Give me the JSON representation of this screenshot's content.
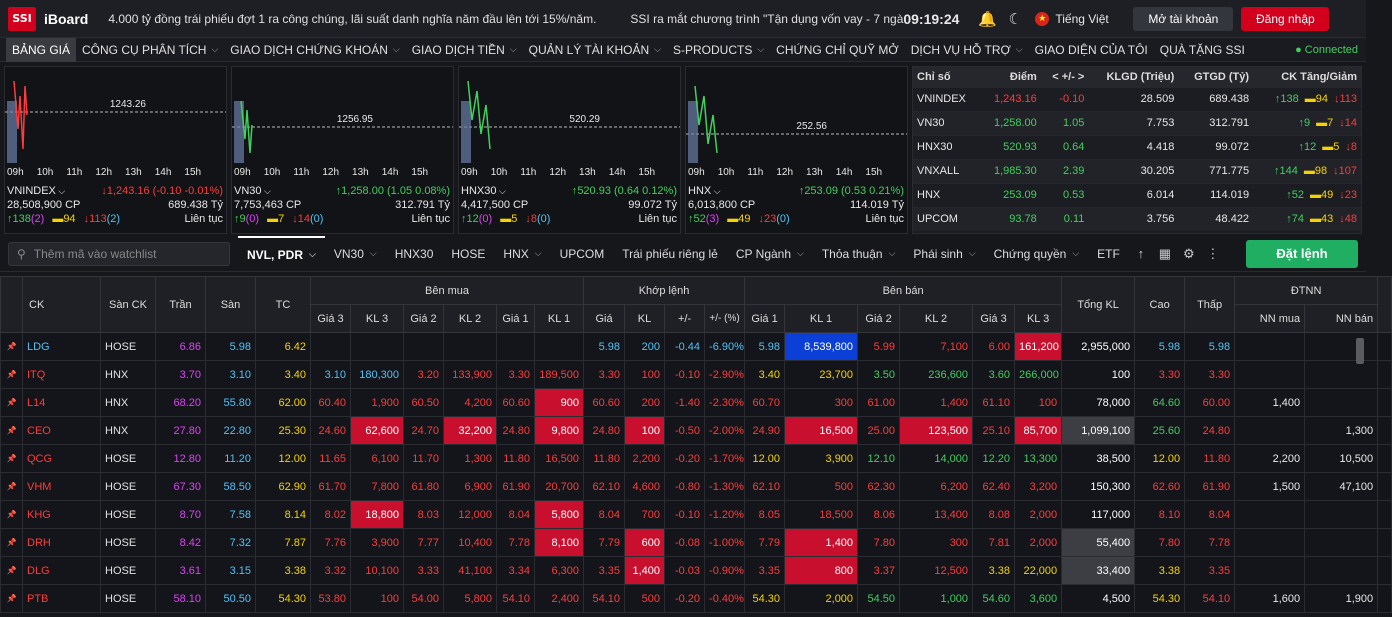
{
  "header": {
    "logo": "SSI",
    "app": "iBoard",
    "news": [
      "4.000 tỷ đồng trái phiếu đợt 1 ra công chúng, lãi suất danh nghĩa năm đầu lên tới 15%/năm.",
      "SSI ra mắt chương trình \"Tận dụng vốn vay - 7 ngà"
    ],
    "time": "09:19:24",
    "language": "Tiếng Việt",
    "open_account": "Mở tài khoản",
    "login": "Đăng nhập"
  },
  "menu": {
    "items": [
      "BẢNG GIÁ",
      "CÔNG CỤ PHÂN TÍCH",
      "GIAO DỊCH CHỨNG KHOÁN",
      "GIAO DỊCH TIỀN",
      "QUẢN LÝ TÀI KHOẢN",
      "S-PRODUCTS",
      "CHỨNG CHỈ QUỸ MỞ",
      "DỊCH VỤ HỖ TRỢ",
      "GIAO DIỆN CỦA TÔI",
      "QUÀ TẶNG SSI"
    ],
    "connected": "Connected"
  },
  "mini_charts": [
    {
      "name": "VNINDEX",
      "change": "↓1,243.16 (-0.10 -0.01%)",
      "volume": "28,508,900 CP",
      "value": "689.438 Tỷ",
      "up": "↑138",
      "up_n": "(2)",
      "ref": "▬94",
      "down": "↓113",
      "down_n": "(2)",
      "status": "Liên tục",
      "ref_price": "1243.26",
      "dir": "dn"
    },
    {
      "name": "VN30",
      "change": "↑1,258.00 (1.05 0.08%)",
      "volume": "7,753,463 CP",
      "value": "312.791 Tỷ",
      "up": "↑9",
      "up_n": "(0)",
      "ref": "▬7",
      "down": "↓14",
      "down_n": "(0)",
      "status": "Liên tục",
      "ref_price": "1256.95",
      "dir": "up"
    },
    {
      "name": "HNX30",
      "change": "↑520.93 (0.64 0.12%)",
      "volume": "4,417,500 CP",
      "value": "99.072 Tỷ",
      "up": "↑12",
      "up_n": "(0)",
      "ref": "▬5",
      "down": "↓8",
      "down_n": "(0)",
      "status": "Liên tục",
      "ref_price": "520.29",
      "dir": "up"
    },
    {
      "name": "HNX",
      "change": "↑253.09 (0.53 0.21%)",
      "volume": "6,013,800 CP",
      "value": "114.019 Tỷ",
      "up": "↑52",
      "up_n": "(3)",
      "ref": "▬49",
      "down": "↓23",
      "down_n": "(0)",
      "status": "Liên tục",
      "ref_price": "252.56",
      "dir": "up"
    }
  ],
  "chart_hours": [
    "09h",
    "10h",
    "11h",
    "12h",
    "13h",
    "14h",
    "15h"
  ],
  "index_table": {
    "headers": [
      "Chỉ số",
      "Điểm",
      "< +/- >",
      "KLGD (Triệu)",
      "GTGD (Tỷ)",
      "CK Tăng/Giảm"
    ],
    "rows": [
      {
        "name": "VNINDEX",
        "point": "1,243.16",
        "chg": "-0.10",
        "vol": "28.509",
        "val": "689.438",
        "up": "↑138",
        "ref": "▬94",
        "down": "↓113",
        "dir": "dn"
      },
      {
        "name": "VN30",
        "point": "1,258.00",
        "chg": "1.05",
        "vol": "7.753",
        "val": "312.791",
        "up": "↑9",
        "ref": "▬7",
        "down": "↓14",
        "dir": "up"
      },
      {
        "name": "HNX30",
        "point": "520.93",
        "chg": "0.64",
        "vol": "4.418",
        "val": "99.072",
        "up": "↑12",
        "ref": "▬5",
        "down": "↓8",
        "dir": "up"
      },
      {
        "name": "VNXALL",
        "point": "1,985.30",
        "chg": "2.39",
        "vol": "30.205",
        "val": "771.775",
        "up": "↑144",
        "ref": "▬98",
        "down": "↓107",
        "dir": "up"
      },
      {
        "name": "HNX",
        "point": "253.09",
        "chg": "0.53",
        "vol": "6.014",
        "val": "114.019",
        "up": "↑52",
        "ref": "▬49",
        "down": "↓23",
        "dir": "up"
      },
      {
        "name": "UPCOM",
        "point": "93.78",
        "chg": "0.11",
        "vol": "3.756",
        "val": "48.422",
        "up": "↑74",
        "ref": "▬43",
        "down": "↓48",
        "dir": "up"
      }
    ]
  },
  "toolbar": {
    "search_placeholder": "Thêm mã vào watchlist",
    "tabs": [
      "NVL, PDR",
      "VN30",
      "HNX30",
      "HOSE",
      "HNX",
      "UPCOM",
      "Trái phiếu riêng lẻ",
      "CP Ngành",
      "Thỏa thuận",
      "Phái sinh",
      "Chứng quyền",
      "ETF"
    ],
    "order_button": "Đặt lệnh"
  },
  "board": {
    "group_headers": {
      "buy": "Bên mua",
      "match": "Khớp lệnh",
      "sell": "Bên bán",
      "foreign": "ĐTNN"
    },
    "headers": {
      "ck": "CK",
      "exchange": "Sàn CK",
      "ceil": "Trần",
      "floor": "Sàn",
      "ref": "TC",
      "bp3": "Giá 3",
      "bv3": "KL 3",
      "bp2": "Giá 2",
      "bv2": "KL 2",
      "bp1": "Giá 1",
      "bv1": "KL 1",
      "mp": "Giá",
      "mv": "KL",
      "mchg": "+/-",
      "mpct": "+/- (%)",
      "sp1": "Giá 1",
      "sv1": "KL 1",
      "sp2": "Giá 2",
      "sv2": "KL 2",
      "sp3": "Giá 3",
      "sv3": "KL 3",
      "total": "Tổng KL",
      "high": "Cao",
      "low": "Thấp",
      "nn_buy": "NN mua",
      "nn_sell": "NN bán"
    },
    "rows": [
      [
        "LDG",
        "HOSE",
        "6.86",
        "5.98",
        "6.42",
        "",
        "",
        "",
        "",
        "",
        "",
        "5.98",
        "200",
        "-0.44",
        "-6.90%",
        "5.98",
        "8,539,800",
        "5.99",
        "7,100",
        "6.00",
        "161,200",
        "2,955,000",
        "5.98",
        "5.98",
        "",
        ""
      ],
      [
        "ITQ",
        "HNX",
        "3.70",
        "3.10",
        "3.40",
        "3.10",
        "180,300",
        "3.20",
        "133,900",
        "3.30",
        "189,500",
        "3.30",
        "100",
        "-0.10",
        "-2.90%",
        "3.40",
        "23,700",
        "3.50",
        "236,600",
        "3.60",
        "266,000",
        "100",
        "3.30",
        "3.30",
        "",
        ""
      ],
      [
        "L14",
        "HNX",
        "68.20",
        "55.80",
        "62.00",
        "60.40",
        "1,900",
        "60.50",
        "4,200",
        "60.60",
        "900",
        "60.60",
        "200",
        "-1.40",
        "-2.30%",
        "60.70",
        "300",
        "61.00",
        "1,400",
        "61.10",
        "100",
        "78,000",
        "64.60",
        "60.00",
        "1,400",
        ""
      ],
      [
        "CEO",
        "HNX",
        "27.80",
        "22.80",
        "25.30",
        "24.60",
        "62,600",
        "24.70",
        "32,200",
        "24.80",
        "9,800",
        "24.80",
        "100",
        "-0.50",
        "-2.00%",
        "24.90",
        "16,500",
        "25.00",
        "123,500",
        "25.10",
        "85,700",
        "1,099,100",
        "25.60",
        "24.80",
        "",
        "1,300"
      ],
      [
        "QCG",
        "HOSE",
        "12.80",
        "11.20",
        "12.00",
        "11.65",
        "6,100",
        "11.70",
        "1,300",
        "11.80",
        "16,500",
        "11.80",
        "2,200",
        "-0.20",
        "-1.70%",
        "12.00",
        "3,900",
        "12.10",
        "14,000",
        "12.20",
        "13,300",
        "38,500",
        "12.00",
        "11.80",
        "2,200",
        "10,500"
      ],
      [
        "VHM",
        "HOSE",
        "67.30",
        "58.50",
        "62.90",
        "61.70",
        "7,800",
        "61.80",
        "6,900",
        "61.90",
        "20,700",
        "62.10",
        "4,600",
        "-0.80",
        "-1.30%",
        "62.10",
        "500",
        "62.30",
        "6,200",
        "62.40",
        "3,200",
        "150,300",
        "62.60",
        "61.90",
        "1,500",
        "47,100"
      ],
      [
        "KHG",
        "HOSE",
        "8.70",
        "7.58",
        "8.14",
        "8.02",
        "18,800",
        "8.03",
        "12,000",
        "8.04",
        "5,800",
        "8.04",
        "700",
        "-0.10",
        "-1.20%",
        "8.05",
        "18,500",
        "8.06",
        "13,400",
        "8.08",
        "2,000",
        "117,000",
        "8.10",
        "8.04",
        "",
        ""
      ],
      [
        "DRH",
        "HOSE",
        "8.42",
        "7.32",
        "7.87",
        "7.76",
        "3,900",
        "7.77",
        "10,400",
        "7.78",
        "8,100",
        "7.79",
        "600",
        "-0.08",
        "-1.00%",
        "7.79",
        "1,400",
        "7.80",
        "300",
        "7.81",
        "2,000",
        "55,400",
        "7.80",
        "7.78",
        "",
        ""
      ],
      [
        "DLG",
        "HOSE",
        "3.61",
        "3.15",
        "3.38",
        "3.32",
        "10,100",
        "3.33",
        "41,100",
        "3.34",
        "6,300",
        "3.35",
        "1,400",
        "-0.03",
        "-0.90%",
        "3.35",
        "800",
        "3.37",
        "12,500",
        "3.38",
        "22,000",
        "33,400",
        "3.38",
        "3.35",
        "",
        ""
      ],
      [
        "PTB",
        "HOSE",
        "58.10",
        "50.50",
        "54.30",
        "53.80",
        "100",
        "54.00",
        "5,800",
        "54.10",
        "2,400",
        "54.10",
        "500",
        "-0.20",
        "-0.40%",
        "54.30",
        "2,000",
        "54.50",
        "1,000",
        "54.60",
        "3,600",
        "4,500",
        "54.30",
        "54.10",
        "1,600",
        "1,900"
      ]
    ],
    "highlights": [
      {},
      {},
      {
        "bv1": "hl-red"
      },
      {
        "bv3": "hl-red",
        "bv2": "hl-red",
        "bv1": "hl-red",
        "mv": "hl-red",
        "sv1": "hl-red",
        "sv2": "hl-red",
        "sv3": "hl-red",
        "total": "hl-gray"
      },
      {},
      {},
      {
        "bv3": "hl-red",
        "bv1": "hl-red"
      },
      {
        "bv1": "hl-red",
        "mv": "hl-red",
        "sv1": "hl-red",
        "total": "hl-gray"
      },
      {
        "mv": "hl-red",
        "sv1": "hl-red",
        "total": "hl-gray"
      },
      {}
    ],
    "first_row_sv1_highlight": "hl-blue",
    "first_row_sv3_highlight": "hl-red"
  },
  "colors": {
    "up": "#3fd05d",
    "down": "#ff3b3b",
    "ref": "#f5d300",
    "ceil": "#e040fb",
    "floor": "#4fc3f7",
    "brand": "#d3001d",
    "order": "#1fae62"
  }
}
